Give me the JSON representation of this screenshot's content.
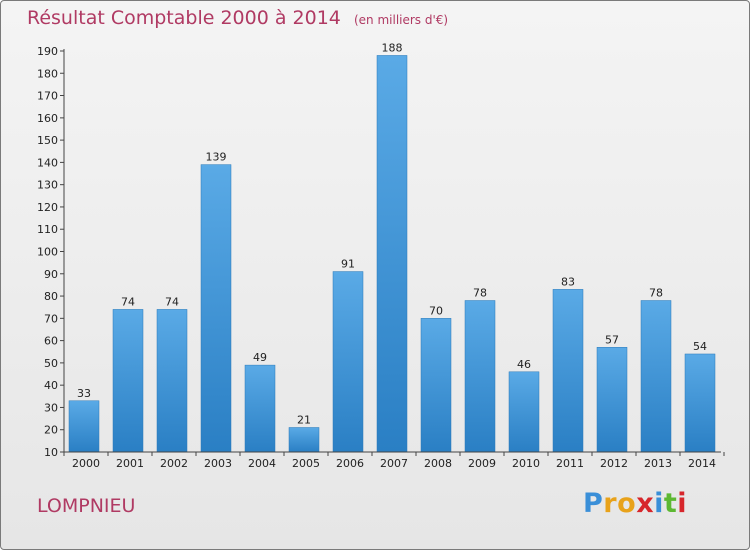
{
  "header": {
    "title": "Résultat Comptable 2000 à 2014",
    "unit": "(en milliers d'€)"
  },
  "commune": "LOMPNIEU",
  "logo": {
    "text": "Proxiti",
    "colors": [
      "#3a8fd8",
      "#e8a21a",
      "#e8a21a",
      "#d7262b",
      "#3a8fd8",
      "#5db832",
      "#d7262b"
    ]
  },
  "colors": {
    "bar_light": "#5aaae6",
    "bar_dark": "#2a7fc4",
    "accent": "#b03a63"
  },
  "chart_data": {
    "type": "bar",
    "title": "Résultat Comptable 2000 à 2014",
    "subtitle": "(en milliers d'€)",
    "categories": [
      "2000",
      "2001",
      "2002",
      "2003",
      "2004",
      "2005",
      "2006",
      "2007",
      "2008",
      "2009",
      "2010",
      "2011",
      "2012",
      "2013",
      "2014"
    ],
    "values": [
      33,
      74,
      74,
      139,
      49,
      21,
      91,
      188,
      70,
      78,
      46,
      83,
      57,
      78,
      54
    ],
    "yticks": [
      10,
      20,
      30,
      40,
      50,
      60,
      70,
      80,
      90,
      100,
      110,
      120,
      130,
      140,
      150,
      160,
      170,
      180,
      190
    ],
    "ylim": [
      10,
      190
    ],
    "xlabel": "",
    "ylabel": "",
    "grid": false
  }
}
